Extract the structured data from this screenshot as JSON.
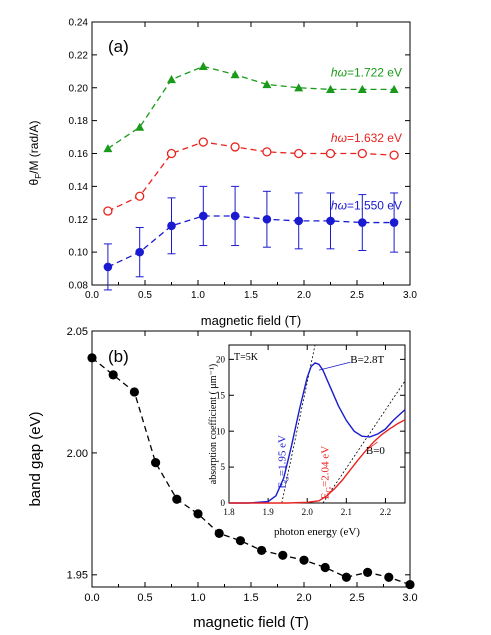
{
  "chart_data": [
    {
      "type": "line",
      "panel_label": "(a)",
      "xlabel": "magnetic field (T)",
      "ylabel": "θF/M (rad/A)",
      "ylabel_main": "θ",
      "ylabel_sub": "F",
      "ylabel_rest": "/M (rad/A)",
      "xlim": [
        0.0,
        3.0
      ],
      "ylim": [
        0.08,
        0.24
      ],
      "x_ticks": [
        "0.0",
        "0.5",
        "1.0",
        "1.5",
        "2.0",
        "2.5",
        "3.0"
      ],
      "y_ticks": [
        "0.08",
        "0.10",
        "0.12",
        "0.14",
        "0.16",
        "0.18",
        "0.20",
        "0.22",
        "0.24"
      ],
      "x": [
        0.15,
        0.45,
        0.75,
        1.05,
        1.35,
        1.65,
        1.95,
        2.25,
        2.55,
        2.85
      ],
      "series": [
        {
          "name": "hω=1.722 eV",
          "label_prefix": "hω",
          "label_value": "=1.722 eV",
          "color": "#1a9a1a",
          "marker": "triangle",
          "values": [
            0.163,
            0.176,
            0.205,
            0.213,
            0.208,
            0.202,
            0.2,
            0.199,
            0.199,
            0.199
          ]
        },
        {
          "name": "hω=1.632 eV",
          "label_prefix": "hω",
          "label_value": "=1.632 eV",
          "color": "#e8231f",
          "marker": "open-circle",
          "values": [
            0.125,
            0.134,
            0.16,
            0.167,
            0.164,
            0.161,
            0.16,
            0.16,
            0.16,
            0.159
          ]
        },
        {
          "name": "hω=1.550 eV",
          "label_prefix": "hω",
          "label_value": "=1.550 eV",
          "color": "#1a1ad0",
          "marker": "filled-circle",
          "values": [
            0.091,
            0.1,
            0.116,
            0.122,
            0.122,
            0.12,
            0.119,
            0.119,
            0.118,
            0.118
          ],
          "error": [
            0.014,
            0.015,
            0.017,
            0.018,
            0.018,
            0.017,
            0.017,
            0.017,
            0.017,
            0.018
          ]
        }
      ]
    },
    {
      "type": "line",
      "panel_label": "(b)",
      "xlabel": "magnetic field (T)",
      "ylabel": "band gap (eV)",
      "xlim": [
        0.0,
        3.0
      ],
      "ylim": [
        1.945,
        2.05
      ],
      "x_ticks": [
        "0.0",
        "0.5",
        "1.0",
        "1.5",
        "2.0",
        "2.5",
        "3.0"
      ],
      "y_ticks": [
        "1.95",
        "2.00",
        "2.05"
      ],
      "color": "#000000",
      "x": [
        0.0,
        0.2,
        0.4,
        0.6,
        0.8,
        1.0,
        1.2,
        1.4,
        1.6,
        1.8,
        2.0,
        2.2,
        2.4,
        2.6,
        2.8,
        3.0
      ],
      "values": [
        2.039,
        2.032,
        2.025,
        1.996,
        1.981,
        1.975,
        1.967,
        1.964,
        1.96,
        1.958,
        1.956,
        1.953,
        1.949,
        1.951,
        1.949,
        1.946
      ]
    },
    {
      "type": "line",
      "role": "inset",
      "xlabel": "photon energy (eV)",
      "ylabel": "absorption coefficient ( μm⁻¹)",
      "annotation_temp": "T=5K",
      "xlim": [
        1.8,
        2.25
      ],
      "ylim": [
        0,
        22
      ],
      "x_ticks": [
        "1.8",
        "1.9",
        "2.0",
        "2.1",
        "2.2"
      ],
      "y_ticks": [
        "0",
        "5",
        "10",
        "15",
        "20"
      ],
      "series": [
        {
          "name": "B=2.8T",
          "color": "#1a1ad0",
          "x": [
            1.8,
            1.85,
            1.9,
            1.92,
            1.94,
            1.96,
            1.98,
            2.0,
            2.01,
            2.02,
            2.03,
            2.04,
            2.06,
            2.08,
            2.1,
            2.12,
            2.14,
            2.16,
            2.18,
            2.2,
            2.22,
            2.25
          ],
          "values": [
            0,
            0,
            0.2,
            1.0,
            3.5,
            8.0,
            13.0,
            17.5,
            19.0,
            19.5,
            19.3,
            18.5,
            16.0,
            13.5,
            11.5,
            10.0,
            9.3,
            9.2,
            9.6,
            10.3,
            11.5,
            13.0
          ]
        },
        {
          "name": "B=0",
          "color": "#e8231f",
          "x": [
            1.8,
            1.9,
            1.95,
            2.0,
            2.03,
            2.05,
            2.07,
            2.09,
            2.11,
            2.13,
            2.15,
            2.17,
            2.19,
            2.21,
            2.23,
            2.25
          ],
          "values": [
            0,
            0,
            0,
            0.1,
            0.3,
            1.0,
            2.0,
            3.2,
            4.6,
            6.0,
            7.3,
            8.5,
            9.5,
            10.3,
            11.0,
            11.6
          ]
        }
      ],
      "annotations": [
        {
          "text": "EG=1.95 eV",
          "main": "E",
          "sub": "G",
          "rest": "=1.95 eV",
          "color": "#1a1ad0"
        },
        {
          "text": "EG=2.04 eV",
          "main": "E",
          "sub": "G",
          "rest": "=2.04 eV",
          "color": "#e8231f"
        }
      ]
    }
  ]
}
